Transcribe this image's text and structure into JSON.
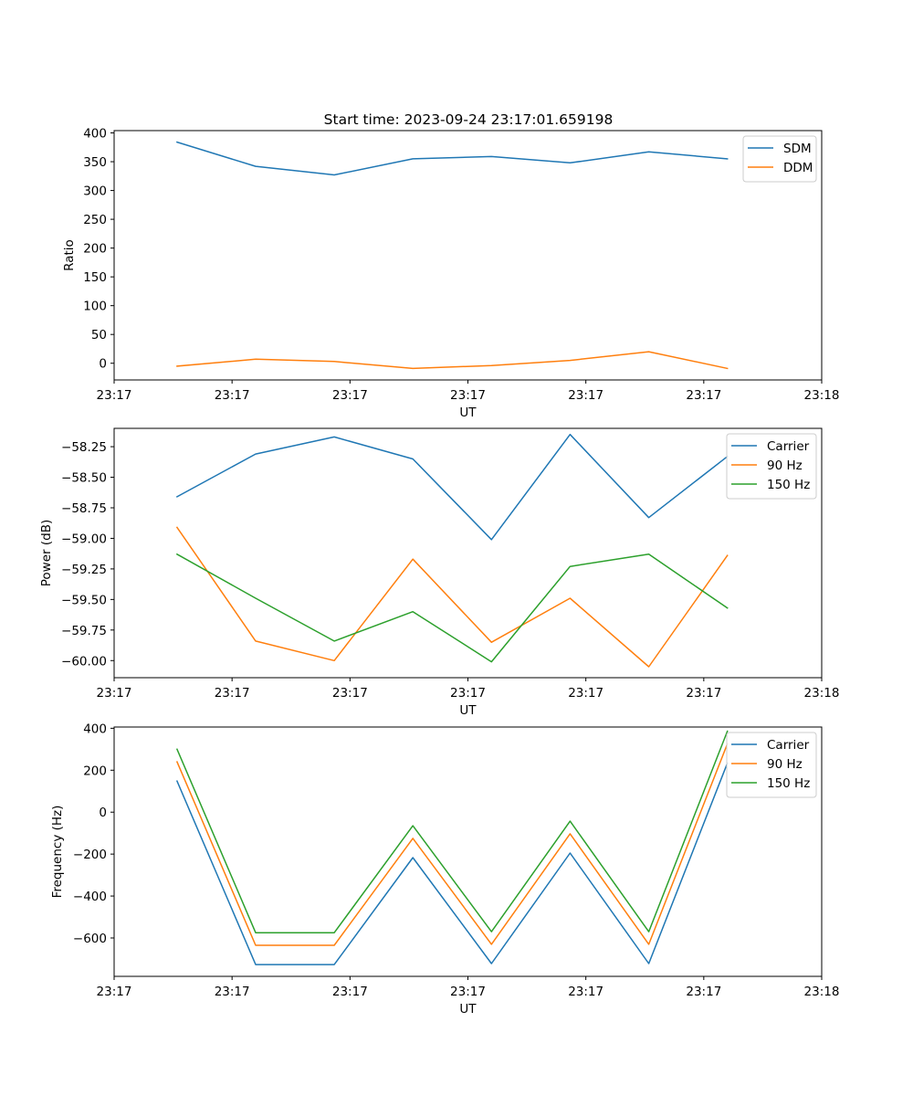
{
  "chart_data": [
    {
      "type": "line",
      "title": "Start time: 2023-09-24 23:17:01.659198",
      "xlabel": "UT",
      "ylabel": "Ratio",
      "x": [
        1,
        2,
        3,
        4,
        5,
        6,
        7,
        8
      ],
      "xlim": [
        0.2,
        9.2
      ],
      "ylim": [
        -29,
        404
      ],
      "yticks": [
        0,
        50,
        100,
        150,
        200,
        250,
        300,
        350,
        400
      ],
      "ytick_labels": [
        "0",
        "50",
        "100",
        "150",
        "200",
        "250",
        "300",
        "350",
        "400"
      ],
      "xticks": [
        0.2,
        1.7,
        3.2,
        4.7,
        6.2,
        7.7,
        9.2
      ],
      "xtick_labels": [
        "23:17",
        "23:17",
        "23:17",
        "23:17",
        "23:17",
        "23:17",
        "23:18"
      ],
      "legend": "upper-right",
      "series": [
        {
          "name": "SDM",
          "color": "#1f77b4",
          "values": [
            384,
            342,
            327,
            355,
            359,
            348,
            367,
            355
          ]
        },
        {
          "name": "DDM",
          "color": "#ff7f0e",
          "values": [
            -5,
            7,
            3,
            -9,
            -4,
            5,
            20,
            -9
          ]
        }
      ]
    },
    {
      "type": "line",
      "title": "",
      "xlabel": "UT",
      "ylabel": "Power (dB)",
      "x": [
        1,
        2,
        3,
        4,
        5,
        6,
        7,
        8
      ],
      "xlim": [
        0.2,
        9.2
      ],
      "ylim": [
        -60.14,
        -58.1
      ],
      "yticks": [
        -60.0,
        -59.75,
        -59.5,
        -59.25,
        -59.0,
        -58.75,
        -58.5,
        -58.25
      ],
      "ytick_labels": [
        "−60.00",
        "−59.75",
        "−59.50",
        "−59.25",
        "−59.00",
        "−58.75",
        "−58.50",
        "−58.25"
      ],
      "xticks": [
        0.2,
        1.7,
        3.2,
        4.7,
        6.2,
        7.7,
        9.2
      ],
      "xtick_labels": [
        "23:17",
        "23:17",
        "23:17",
        "23:17",
        "23:17",
        "23:17",
        "23:18"
      ],
      "legend": "upper-right",
      "series": [
        {
          "name": "Carrier",
          "color": "#1f77b4",
          "values": [
            -58.66,
            -58.31,
            -58.17,
            -58.35,
            -59.01,
            -58.15,
            -58.83,
            -58.33
          ]
        },
        {
          "name": "90 Hz",
          "color": "#ff7f0e",
          "values": [
            -58.91,
            -59.84,
            -60.0,
            -59.17,
            -59.85,
            -59.49,
            -60.05,
            -59.14
          ]
        },
        {
          "name": "150 Hz",
          "color": "#2ca02c",
          "values": [
            -59.13,
            -59.49,
            -59.84,
            -59.6,
            -60.01,
            -59.23,
            -59.13,
            -59.57
          ]
        }
      ]
    },
    {
      "type": "line",
      "title": "",
      "xlabel": "UT",
      "ylabel": "Frequency (Hz)",
      "x": [
        1,
        2,
        3,
        4,
        5,
        6,
        7,
        8
      ],
      "xlim": [
        0.2,
        9.2
      ],
      "ylim": [
        -783,
        406
      ],
      "yticks": [
        -600,
        -400,
        -200,
        0,
        200,
        400
      ],
      "ytick_labels": [
        "−600",
        "−400",
        "−200",
        "0",
        "200",
        "400"
      ],
      "xticks": [
        0.2,
        1.7,
        3.2,
        4.7,
        6.2,
        7.7,
        9.2
      ],
      "xtick_labels": [
        "23:17",
        "23:17",
        "23:17",
        "23:17",
        "23:17",
        "23:17",
        "23:18"
      ],
      "legend": "upper-right",
      "series": [
        {
          "name": "Carrier",
          "color": "#1f77b4",
          "values": [
            148,
            -727,
            -727,
            -217,
            -722,
            -195,
            -722,
            234
          ]
        },
        {
          "name": "90 Hz",
          "color": "#ff7f0e",
          "values": [
            240,
            -635,
            -635,
            -125,
            -630,
            -103,
            -630,
            326
          ]
        },
        {
          "name": "150 Hz",
          "color": "#2ca02c",
          "values": [
            300,
            -575,
            -575,
            -65,
            -570,
            -43,
            -570,
            386
          ]
        }
      ]
    }
  ]
}
